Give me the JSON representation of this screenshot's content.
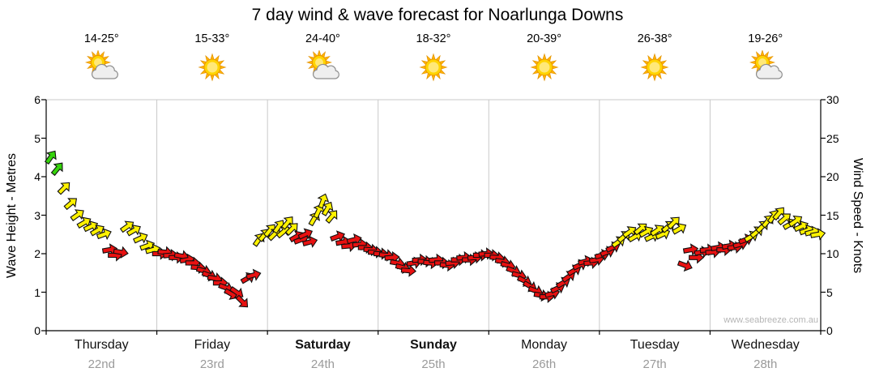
{
  "watermark": "www.seabreeze.com.au",
  "days": [
    {
      "name": "Thursday",
      "date": "22nd",
      "temp": "14-25°",
      "icon": "sun-cloud",
      "bold": false
    },
    {
      "name": "Friday",
      "date": "23rd",
      "temp": "15-33°",
      "icon": "sun",
      "bold": false
    },
    {
      "name": "Saturday",
      "date": "24th",
      "temp": "24-40°",
      "icon": "sun-cloud",
      "bold": true
    },
    {
      "name": "Sunday",
      "date": "25th",
      "temp": "18-32°",
      "icon": "sun",
      "bold": true
    },
    {
      "name": "Monday",
      "date": "26th",
      "temp": "20-39°",
      "icon": "sun",
      "bold": false
    },
    {
      "name": "Tuesday",
      "date": "27th",
      "temp": "26-38°",
      "icon": "sun",
      "bold": false
    },
    {
      "name": "Wednesday",
      "date": "28th",
      "temp": "19-26°",
      "icon": "sun-cloud",
      "bold": false
    }
  ],
  "chart_data": {
    "type": "scatter",
    "title": "7 day wind & wave forecast for Noarlunga Downs",
    "subtitle": "",
    "x_unit": "days from start (0 = Thursday, 7 = end of Wednesday)",
    "x_categories": [
      "Thursday 22nd",
      "Friday 23rd",
      "Saturday 24th",
      "Sunday 25th",
      "Monday 26th",
      "Tuesday 27th",
      "Wednesday 28th"
    ],
    "y_axis_left": {
      "label": "Wave Height - Metres",
      "range": [
        0,
        6
      ],
      "ticks": [
        0,
        1,
        2,
        3,
        4,
        5,
        6
      ]
    },
    "y_axis_right": {
      "label": "Wind Speed - Knots",
      "range": [
        0,
        30
      ],
      "ticks": [
        0,
        5,
        10,
        15,
        20,
        25,
        30
      ]
    },
    "grid": "vertical day separators only",
    "legend": "none",
    "marker": "wind direction arrow, colour-coded by wind strength",
    "colors": {
      "g": "#35d40b",
      "y": "#fff200",
      "r": "#e81111"
    },
    "point_format": [
      "day_fraction_x",
      "wind_speed_knots",
      "color_code",
      "direction_deg_0_is_east"
    ],
    "points": [
      [
        0.04,
        22.5,
        "g",
        55
      ],
      [
        0.1,
        21.0,
        "g",
        50
      ],
      [
        0.16,
        18.5,
        "y",
        45
      ],
      [
        0.22,
        16.5,
        "y",
        40
      ],
      [
        0.28,
        15.0,
        "y",
        35
      ],
      [
        0.34,
        14.0,
        "y",
        30
      ],
      [
        0.4,
        13.5,
        "y",
        25
      ],
      [
        0.46,
        13.0,
        "y",
        30
      ],
      [
        0.52,
        12.5,
        "y",
        20
      ],
      [
        0.57,
        10.5,
        "r",
        10
      ],
      [
        0.62,
        9.8,
        "r",
        0
      ],
      [
        0.67,
        10.2,
        "r",
        -10
      ],
      [
        0.73,
        13.5,
        "y",
        35
      ],
      [
        0.79,
        13.0,
        "y",
        30
      ],
      [
        0.85,
        12.0,
        "y",
        25
      ],
      [
        0.91,
        11.0,
        "y",
        20
      ],
      [
        0.96,
        10.5,
        "y",
        15
      ],
      [
        1.02,
        10.0,
        "r",
        0
      ],
      [
        1.07,
        10.2,
        "r",
        -5
      ],
      [
        1.12,
        9.8,
        "r",
        5
      ],
      [
        1.17,
        9.5,
        "r",
        0
      ],
      [
        1.22,
        9.7,
        "r",
        -10
      ],
      [
        1.27,
        9.2,
        "r",
        10
      ],
      [
        1.32,
        8.8,
        "r",
        0
      ],
      [
        1.37,
        8.2,
        "r",
        -5
      ],
      [
        1.42,
        7.8,
        "r",
        -15
      ],
      [
        1.47,
        7.2,
        "r",
        -20
      ],
      [
        1.52,
        6.8,
        "r",
        -10
      ],
      [
        1.57,
        6.2,
        "r",
        0
      ],
      [
        1.62,
        5.6,
        "r",
        -20
      ],
      [
        1.67,
        4.8,
        "r",
        -30
      ],
      [
        1.72,
        5.0,
        "r",
        -35
      ],
      [
        1.77,
        3.8,
        "r",
        -45
      ],
      [
        1.82,
        6.8,
        "r",
        30
      ],
      [
        1.87,
        7.2,
        "r",
        15
      ],
      [
        1.92,
        11.8,
        "y",
        55
      ],
      [
        1.97,
        12.4,
        "y",
        50
      ],
      [
        2.02,
        13.0,
        "y",
        50
      ],
      [
        2.06,
        12.5,
        "y",
        45
      ],
      [
        2.1,
        13.5,
        "y",
        55
      ],
      [
        2.14,
        12.8,
        "y",
        40
      ],
      [
        2.18,
        14.0,
        "y",
        50
      ],
      [
        2.22,
        13.2,
        "y",
        45
      ],
      [
        2.26,
        12.2,
        "r",
        30
      ],
      [
        2.3,
        11.8,
        "r",
        20
      ],
      [
        2.34,
        12.5,
        "r",
        25
      ],
      [
        2.38,
        11.5,
        "r",
        15
      ],
      [
        2.42,
        14.5,
        "y",
        60
      ],
      [
        2.46,
        15.5,
        "y",
        65
      ],
      [
        2.5,
        16.8,
        "y",
        70
      ],
      [
        2.54,
        15.8,
        "y",
        60
      ],
      [
        2.58,
        14.8,
        "y",
        50
      ],
      [
        2.63,
        12.2,
        "r",
        20
      ],
      [
        2.68,
        11.5,
        "r",
        10
      ],
      [
        2.73,
        11.0,
        "r",
        5
      ],
      [
        2.78,
        11.8,
        "r",
        15
      ],
      [
        2.83,
        11.2,
        "r",
        5
      ],
      [
        2.88,
        10.8,
        "r",
        0
      ],
      [
        2.93,
        10.5,
        "r",
        -5
      ],
      [
        2.97,
        10.2,
        "r",
        0
      ],
      [
        3.02,
        10.0,
        "r",
        0
      ],
      [
        3.07,
        9.8,
        "r",
        -5
      ],
      [
        3.12,
        9.5,
        "r",
        5
      ],
      [
        3.17,
        8.8,
        "r",
        -10
      ],
      [
        3.22,
        8.2,
        "r",
        -15
      ],
      [
        3.27,
        7.8,
        "r",
        -5
      ],
      [
        3.32,
        8.8,
        "r",
        10
      ],
      [
        3.37,
        9.2,
        "r",
        5
      ],
      [
        3.42,
        9.0,
        "r",
        0
      ],
      [
        3.47,
        8.8,
        "r",
        -5
      ],
      [
        3.52,
        9.2,
        "r",
        5
      ],
      [
        3.57,
        8.8,
        "r",
        0
      ],
      [
        3.62,
        8.5,
        "r",
        -5
      ],
      [
        3.67,
        8.8,
        "r",
        5
      ],
      [
        3.72,
        9.2,
        "r",
        0
      ],
      [
        3.77,
        9.5,
        "r",
        5
      ],
      [
        3.82,
        9.2,
        "r",
        0
      ],
      [
        3.87,
        9.5,
        "r",
        5
      ],
      [
        3.92,
        9.8,
        "r",
        0
      ],
      [
        3.97,
        10.0,
        "r",
        5
      ],
      [
        4.02,
        9.8,
        "r",
        0
      ],
      [
        4.07,
        9.5,
        "r",
        -5
      ],
      [
        4.12,
        9.0,
        "r",
        -10
      ],
      [
        4.17,
        8.5,
        "r",
        -15
      ],
      [
        4.22,
        7.8,
        "r",
        -20
      ],
      [
        4.27,
        7.2,
        "r",
        -15
      ],
      [
        4.32,
        6.5,
        "r",
        -25
      ],
      [
        4.37,
        5.8,
        "r",
        -30
      ],
      [
        4.42,
        5.2,
        "r",
        -20
      ],
      [
        4.47,
        4.6,
        "r",
        -10
      ],
      [
        4.52,
        4.4,
        "r",
        0
      ],
      [
        4.57,
        4.8,
        "r",
        15
      ],
      [
        4.62,
        5.5,
        "r",
        25
      ],
      [
        4.67,
        6.2,
        "r",
        30
      ],
      [
        4.72,
        7.0,
        "r",
        35
      ],
      [
        4.77,
        7.8,
        "r",
        30
      ],
      [
        4.82,
        8.5,
        "r",
        25
      ],
      [
        4.87,
        9.0,
        "r",
        15
      ],
      [
        4.92,
        8.8,
        "r",
        5
      ],
      [
        4.97,
        9.2,
        "r",
        10
      ],
      [
        5.02,
        9.8,
        "r",
        15
      ],
      [
        5.07,
        10.2,
        "r",
        20
      ],
      [
        5.12,
        10.8,
        "r",
        25
      ],
      [
        5.17,
        11.5,
        "y",
        35
      ],
      [
        5.22,
        12.2,
        "y",
        40
      ],
      [
        5.27,
        12.8,
        "y",
        35
      ],
      [
        5.32,
        12.2,
        "y",
        30
      ],
      [
        5.37,
        13.2,
        "y",
        40
      ],
      [
        5.42,
        12.8,
        "y",
        30
      ],
      [
        5.47,
        12.2,
        "y",
        25
      ],
      [
        5.52,
        13.0,
        "y",
        35
      ],
      [
        5.57,
        12.5,
        "y",
        25
      ],
      [
        5.62,
        13.5,
        "y",
        40
      ],
      [
        5.67,
        14.0,
        "y",
        45
      ],
      [
        5.72,
        13.2,
        "y",
        30
      ],
      [
        5.77,
        8.5,
        "r",
        -20
      ],
      [
        5.82,
        10.5,
        "r",
        10
      ],
      [
        5.87,
        9.5,
        "r",
        0
      ],
      [
        5.92,
        10.2,
        "r",
        10
      ],
      [
        5.97,
        10.5,
        "r",
        5
      ],
      [
        6.02,
        10.2,
        "r",
        5
      ],
      [
        6.07,
        10.8,
        "r",
        10
      ],
      [
        6.12,
        10.5,
        "r",
        0
      ],
      [
        6.17,
        11.0,
        "r",
        10
      ],
      [
        6.22,
        10.8,
        "r",
        5
      ],
      [
        6.27,
        11.2,
        "r",
        15
      ],
      [
        6.32,
        11.8,
        "r",
        20
      ],
      [
        6.37,
        12.2,
        "y",
        30
      ],
      [
        6.42,
        12.8,
        "y",
        40
      ],
      [
        6.47,
        13.5,
        "y",
        45
      ],
      [
        6.52,
        14.2,
        "y",
        50
      ],
      [
        6.57,
        14.8,
        "y",
        55
      ],
      [
        6.62,
        15.2,
        "y",
        50
      ],
      [
        6.67,
        14.5,
        "y",
        40
      ],
      [
        6.72,
        13.8,
        "y",
        30
      ],
      [
        6.77,
        14.2,
        "y",
        35
      ],
      [
        6.82,
        13.5,
        "y",
        25
      ],
      [
        6.87,
        13.0,
        "y",
        20
      ],
      [
        6.92,
        12.8,
        "y",
        15
      ],
      [
        6.97,
        12.5,
        "y",
        10
      ]
    ]
  }
}
